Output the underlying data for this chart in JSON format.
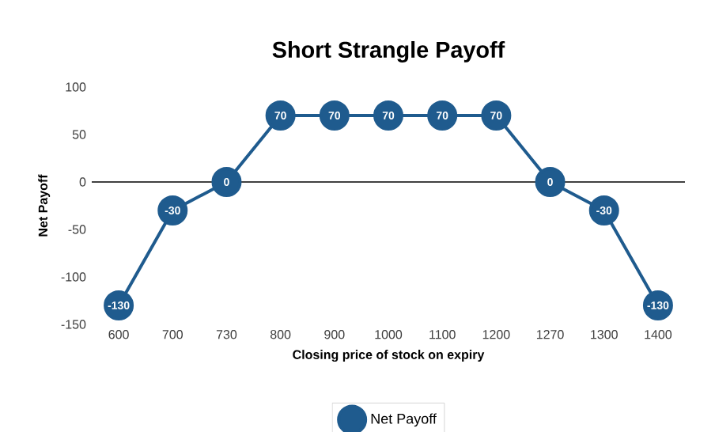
{
  "chart_data": {
    "type": "line",
    "title": "Short Strangle Payoff",
    "xlabel": "Closing price of stock on expiry",
    "ylabel": "Net Payoff",
    "categories": [
      "600",
      "700",
      "730",
      "800",
      "900",
      "1000",
      "1100",
      "1200",
      "1270",
      "1300",
      "1400"
    ],
    "series": [
      {
        "name": "Net Payoff",
        "color": "#1f5b8e",
        "values": [
          -130,
          -30,
          0,
          70,
          70,
          70,
          70,
          70,
          0,
          -30,
          -130
        ]
      }
    ],
    "ylim": [
      -150,
      100
    ],
    "yticks": [
      -150,
      -100,
      -50,
      0,
      50,
      100
    ],
    "marker": "circle",
    "line_style": "solid",
    "data_labels": true,
    "legend": "bottom"
  }
}
